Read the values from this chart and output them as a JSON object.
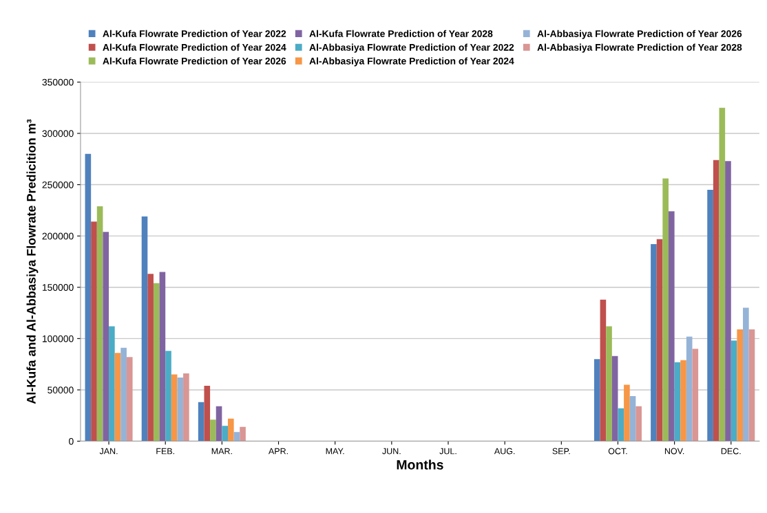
{
  "chart_data": {
    "type": "bar",
    "xlabel": "Months",
    "ylabel": "Al-Kufa and Al-Abbasiya Flowrate Predicition m³",
    "categories": [
      "JAN.",
      "FEB.",
      "MAR.",
      "APR.",
      "MAY.",
      "JUN.",
      "JUL.",
      "AUG.",
      "SEP.",
      "OCT.",
      "NOV.",
      "DEC."
    ],
    "series": [
      {
        "name": "Al-Kufa Flowrate Prediction of Year 2022",
        "color": "#4f81bd",
        "values": [
          280000,
          219000,
          38000,
          0,
          0,
          0,
          0,
          0,
          0,
          80000,
          192000,
          245000
        ]
      },
      {
        "name": "Al-Kufa Flowrate Prediction of Year 2024",
        "color": "#c0504d",
        "values": [
          214000,
          163000,
          54000,
          0,
          0,
          0,
          0,
          0,
          0,
          138000,
          197000,
          274000
        ]
      },
      {
        "name": "Al-Kufa Flowrate Prediction of Year 2026",
        "color": "#9bbb59",
        "values": [
          229000,
          154000,
          21000,
          0,
          0,
          0,
          0,
          0,
          0,
          112000,
          256000,
          325000
        ]
      },
      {
        "name": "Al-Kufa Flowrate Prediction of Year 2028",
        "color": "#8064a2",
        "values": [
          204000,
          165000,
          34000,
          0,
          0,
          0,
          0,
          0,
          0,
          83000,
          224000,
          273000
        ]
      },
      {
        "name": "Al-Abbasiya Flowrate Prediction of Year 2022",
        "color": "#4bacc6",
        "values": [
          112000,
          88000,
          15000,
          0,
          0,
          0,
          0,
          0,
          0,
          32000,
          77000,
          98000
        ]
      },
      {
        "name": "Al-Abbasiya Flowrate Prediction of Year 2024",
        "color": "#f79646",
        "values": [
          86000,
          65000,
          22000,
          0,
          0,
          0,
          0,
          0,
          0,
          55000,
          79000,
          109000
        ]
      },
      {
        "name": "Al-Abbasiya Flowrate Prediction of Year 2026",
        "color": "#95b3d7",
        "values": [
          91000,
          62000,
          9000,
          0,
          0,
          0,
          0,
          0,
          0,
          44000,
          102000,
          130000
        ]
      },
      {
        "name": "Al-Abbasiya Flowrate Prediction of Year 2028",
        "color": "#d99694",
        "values": [
          82000,
          66000,
          14000,
          0,
          0,
          0,
          0,
          0,
          0,
          34000,
          90000,
          109000
        ]
      }
    ],
    "ylim": [
      0,
      350000
    ],
    "yticks": [
      0,
      50000,
      100000,
      150000,
      200000,
      250000,
      300000,
      350000
    ],
    "grid": "y",
    "legend": "top"
  }
}
